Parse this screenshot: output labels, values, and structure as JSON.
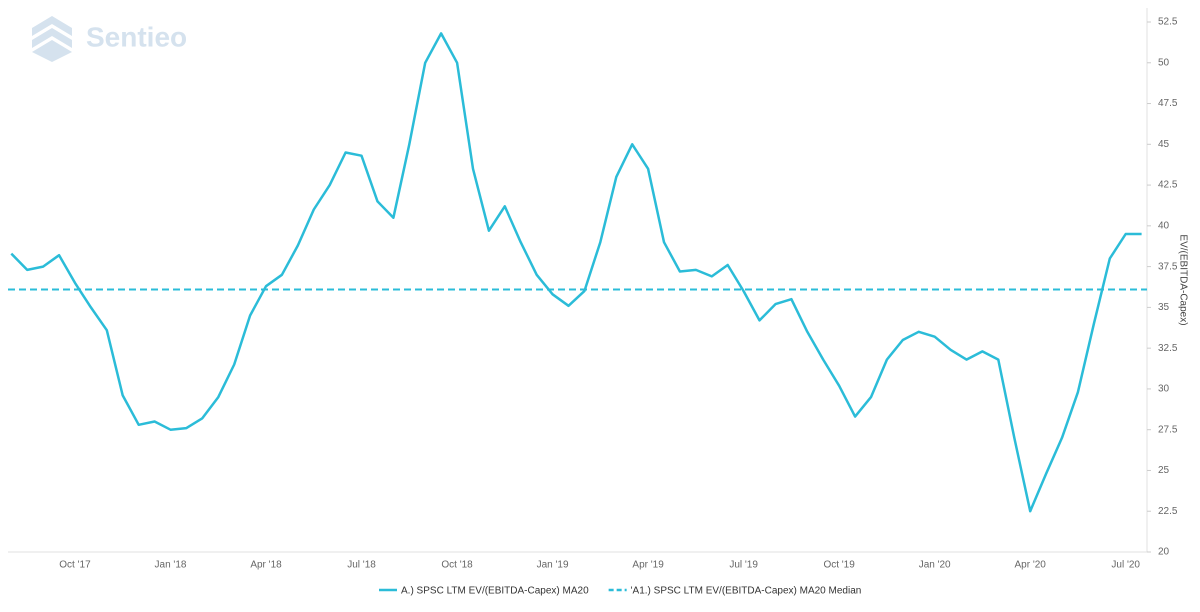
{
  "chart_data": {
    "type": "line",
    "watermark": "Sentieo",
    "ylabel": "EV/(EBITDA-Capex)",
    "categories": [
      null,
      null,
      null,
      null,
      "Oct '17",
      null,
      null,
      null,
      null,
      null,
      "Jan '18",
      null,
      null,
      null,
      null,
      null,
      "Apr '18",
      null,
      null,
      null,
      null,
      null,
      "Jul '18",
      null,
      null,
      null,
      null,
      null,
      "Oct '18",
      null,
      null,
      null,
      null,
      null,
      "Jan '19",
      null,
      null,
      null,
      null,
      null,
      "Apr '19",
      null,
      null,
      null,
      null,
      null,
      "Jul '19",
      null,
      null,
      null,
      null,
      null,
      "Oct '19",
      null,
      null,
      null,
      null,
      null,
      "Jan '20",
      null,
      null,
      null,
      null,
      null,
      "Apr '20",
      null,
      null,
      null,
      null,
      null,
      "Jul '20",
      null
    ],
    "series": [
      {
        "name": "A.) SPSC LTM EV/(EBITDA-Capex) MA20",
        "color": "#2bbcd8",
        "values": [
          38.3,
          37.3,
          37.5,
          38.2,
          36.5,
          35.0,
          33.6,
          29.6,
          27.8,
          28.0,
          27.5,
          27.6,
          28.2,
          29.5,
          31.5,
          34.5,
          36.3,
          37.0,
          38.8,
          41.0,
          42.5,
          44.5,
          44.3,
          41.5,
          40.5,
          45.0,
          50.0,
          51.8,
          50.0,
          43.5,
          39.7,
          41.2,
          39.0,
          37.0,
          35.8,
          35.1,
          36.0,
          39.0,
          43.0,
          45.0,
          43.5,
          39.0,
          37.2,
          37.3,
          36.9,
          37.6,
          36.0,
          34.2,
          35.2,
          35.5,
          33.5,
          31.8,
          30.2,
          28.3,
          29.5,
          31.8,
          33.0,
          33.5,
          33.2,
          32.4,
          31.8,
          32.3,
          31.8,
          27.0,
          22.5,
          24.8,
          27.0,
          29.8,
          34.0,
          38.0,
          39.5,
          39.5
        ]
      }
    ],
    "reference_line": {
      "name": "'A1.) SPSC LTM EV/(EBITDA-Capex) MA20 Median",
      "color": "#2bbcd8",
      "value": 36.1,
      "style": "dashed"
    },
    "ylim": [
      20,
      52.5
    ],
    "yticks": [
      20,
      22.5,
      25,
      27.5,
      30,
      32.5,
      35,
      37.5,
      40,
      42.5,
      45,
      47.5,
      50,
      52.5
    ],
    "y_axis_side": "right",
    "grid": false
  }
}
